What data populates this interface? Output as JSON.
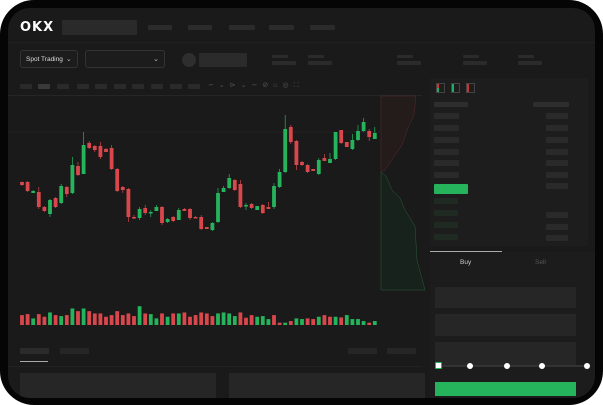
{
  "header": {
    "logo": "OKX"
  },
  "toolbar": {
    "market_selector": "Spot Trading",
    "chevron": "chevron-down-icon"
  },
  "order_book": {
    "view_icons": [
      "orderbook-both-icon",
      "orderbook-bids-icon",
      "orderbook-asks-icon"
    ]
  },
  "order_form": {
    "tabs": [
      "Buy",
      "Sell"
    ],
    "active_tab": "Buy",
    "slider_value": 0,
    "slider_stops": 5
  },
  "colors": {
    "up": "#25b35b",
    "down": "#d8474c",
    "background": "#1a1a1a",
    "buy_button": "#25b35b"
  },
  "chart_data": {
    "type": "candlestick",
    "candles": [
      [
        68,
        65,
        68.5,
        64
      ],
      [
        68,
        59,
        69,
        58
      ],
      [
        57,
        59,
        60,
        57
      ],
      [
        58,
        43,
        63,
        41
      ],
      [
        43,
        39,
        44,
        38
      ],
      [
        36,
        50,
        51,
        33
      ],
      [
        52,
        43,
        53,
        42
      ],
      [
        47,
        64,
        66,
        46
      ],
      [
        63,
        56,
        64,
        53
      ],
      [
        57,
        85,
        93,
        56
      ],
      [
        84,
        75,
        88,
        74
      ],
      [
        76,
        105,
        118,
        76
      ],
      [
        107,
        102,
        109,
        101
      ],
      [
        104,
        100,
        105,
        98
      ],
      [
        104,
        93,
        108,
        91
      ],
      [
        101,
        98,
        102,
        98
      ],
      [
        102,
        81,
        105,
        80
      ],
      [
        81,
        59,
        82,
        58
      ],
      [
        63,
        60,
        64,
        57
      ],
      [
        61,
        33,
        62,
        28
      ],
      [
        33,
        32,
        35,
        31
      ],
      [
        32,
        41,
        43,
        30
      ],
      [
        42,
        37,
        45,
        35
      ],
      [
        37,
        38,
        40,
        33
      ],
      [
        39,
        43,
        45,
        39
      ],
      [
        43,
        27,
        44,
        25
      ],
      [
        28,
        31,
        32,
        27
      ],
      [
        33,
        29,
        34,
        28
      ],
      [
        30,
        40,
        42,
        30
      ],
      [
        41,
        39,
        42,
        39
      ],
      [
        41,
        32,
        42,
        30
      ],
      [
        33,
        32,
        34,
        32
      ],
      [
        33,
        21,
        35,
        20
      ],
      [
        23,
        21,
        23,
        21
      ],
      [
        20,
        27,
        28,
        19
      ],
      [
        28,
        57,
        62,
        27
      ],
      [
        58,
        62,
        64,
        58
      ],
      [
        62,
        72,
        76,
        61
      ],
      [
        70,
        60,
        71,
        59
      ],
      [
        66,
        43,
        70,
        42
      ],
      [
        44,
        45,
        47,
        40
      ],
      [
        46,
        42,
        47,
        41
      ],
      [
        40,
        44,
        44,
        40
      ],
      [
        45,
        37,
        46,
        36
      ],
      [
        43,
        41,
        48,
        41
      ],
      [
        43,
        64,
        67,
        41
      ],
      [
        63,
        78,
        81,
        62
      ],
      [
        78,
        121,
        135,
        77
      ],
      [
        123,
        108,
        125,
        106
      ],
      [
        109,
        85,
        110,
        80
      ],
      [
        88,
        85,
        89,
        84
      ],
      [
        85,
        78,
        86,
        77
      ],
      [
        81,
        79,
        81,
        79
      ],
      [
        76,
        90,
        92,
        75
      ],
      [
        92,
        89,
        96,
        89
      ],
      [
        87,
        91,
        97,
        87
      ],
      [
        91,
        118,
        118,
        90
      ],
      [
        120,
        107,
        120,
        106
      ],
      [
        108,
        103,
        108,
        103
      ],
      [
        101,
        110,
        116,
        100
      ],
      [
        110,
        119,
        125,
        109
      ],
      [
        119,
        128,
        132,
        118
      ],
      [
        119,
        113,
        121,
        109
      ],
      [
        111,
        117,
        123,
        111
      ]
    ],
    "volume": [
      [
        30,
        "down"
      ],
      [
        33,
        "down"
      ],
      [
        20,
        "up"
      ],
      [
        33,
        "down"
      ],
      [
        25,
        "down"
      ],
      [
        38,
        "up"
      ],
      [
        30,
        "down"
      ],
      [
        27,
        "up"
      ],
      [
        30,
        "down"
      ],
      [
        50,
        "up"
      ],
      [
        42,
        "down"
      ],
      [
        50,
        "up"
      ],
      [
        42,
        "down"
      ],
      [
        35,
        "down"
      ],
      [
        35,
        "down"
      ],
      [
        25,
        "down"
      ],
      [
        30,
        "down"
      ],
      [
        42,
        "down"
      ],
      [
        30,
        "down"
      ],
      [
        35,
        "down"
      ],
      [
        27,
        "down"
      ],
      [
        57,
        "up"
      ],
      [
        35,
        "down"
      ],
      [
        33,
        "up"
      ],
      [
        20,
        "up"
      ],
      [
        35,
        "down"
      ],
      [
        25,
        "up"
      ],
      [
        35,
        "down"
      ],
      [
        35,
        "up"
      ],
      [
        38,
        "down"
      ],
      [
        25,
        "down"
      ],
      [
        30,
        "down"
      ],
      [
        38,
        "down"
      ],
      [
        35,
        "down"
      ],
      [
        27,
        "down"
      ],
      [
        35,
        "up"
      ],
      [
        38,
        "up"
      ],
      [
        35,
        "up"
      ],
      [
        27,
        "up"
      ],
      [
        38,
        "down"
      ],
      [
        22,
        "down"
      ],
      [
        30,
        "down"
      ],
      [
        25,
        "up"
      ],
      [
        27,
        "up"
      ],
      [
        18,
        "up"
      ],
      [
        30,
        "down"
      ],
      [
        7,
        "down"
      ],
      [
        7,
        "up"
      ],
      [
        12,
        "down"
      ],
      [
        20,
        "up"
      ],
      [
        18,
        "up"
      ],
      [
        20,
        "down"
      ],
      [
        18,
        "down"
      ],
      [
        25,
        "up"
      ],
      [
        30,
        "down"
      ],
      [
        25,
        "down"
      ],
      [
        25,
        "up"
      ],
      [
        23,
        "down"
      ],
      [
        30,
        "up"
      ],
      [
        18,
        "up"
      ],
      [
        18,
        "up"
      ],
      [
        12,
        "up"
      ],
      [
        7,
        "down"
      ],
      [
        12,
        "up"
      ]
    ]
  }
}
